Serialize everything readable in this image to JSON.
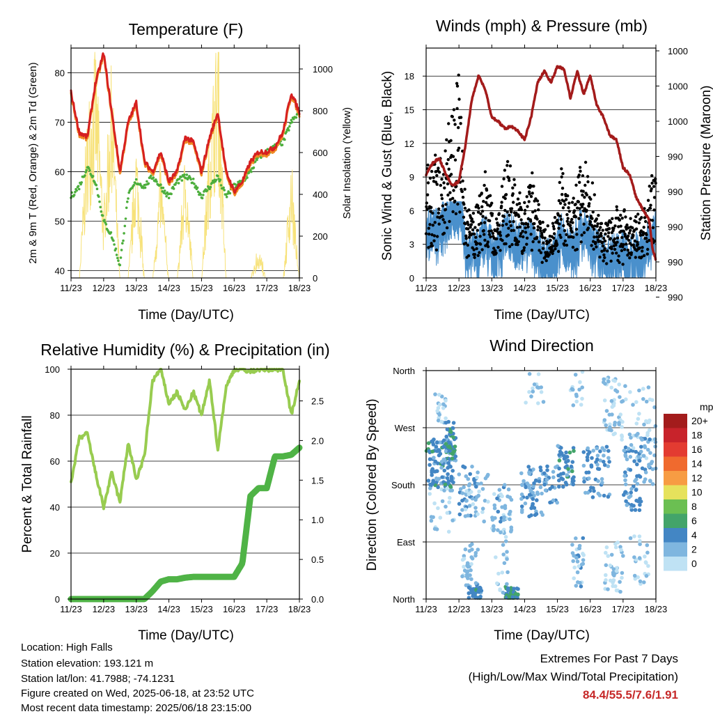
{
  "colors": {
    "temp_2m": "#d62020",
    "temp_9m": "#f08a24",
    "dewpoint": "#4cae3c",
    "solar": "#f7e27a",
    "wind_sonic": "#4a90cc",
    "gust": "#000000",
    "pressure": "#a31b1b",
    "rh": "#98cc50",
    "precip": "#4fb346",
    "extremes": "#c62828"
  },
  "x_ticks": [
    "11/23",
    "12/23",
    "13/23",
    "14/23",
    "15/23",
    "16/23",
    "17/23",
    "18/23"
  ],
  "x_label": "Time (Day/UTC)",
  "chart_data": [
    {
      "type": "line",
      "title": "Temperature (F)",
      "xlabel": "Time (Day/UTC)",
      "ylabel": "2m & 9m T (Red, Orange) & 2m Td (Green)",
      "ylabel_right": "Solar Insolation (Yellow)",
      "ylim": [
        38.5,
        85
      ],
      "ylim_right": [
        0,
        1100
      ],
      "y_ticks": [
        40,
        50,
        60,
        70,
        80
      ],
      "y_ticks_right": [
        0,
        200,
        400,
        600,
        800,
        1000
      ],
      "x": [
        0,
        0.25,
        0.5,
        0.75,
        1,
        1.25,
        1.5,
        1.75,
        2,
        2.25,
        2.5,
        2.75,
        3,
        3.25,
        3.5,
        3.75,
        4,
        4.25,
        4.5,
        4.75,
        5,
        5.25,
        5.5,
        5.75,
        6,
        6.25,
        6.5,
        6.75,
        7
      ],
      "series": [
        {
          "key": "t2m",
          "values": [
            76,
            68,
            67,
            78,
            84,
            72,
            60,
            70,
            74,
            62,
            60,
            64,
            58,
            60,
            67,
            66,
            60,
            67,
            72,
            60,
            56,
            58,
            62,
            64,
            64,
            65,
            68,
            76,
            72
          ]
        },
        {
          "key": "t9m",
          "values": [
            75.5,
            67.5,
            66.5,
            77.5,
            83.5,
            71.5,
            59.5,
            69.5,
            73.5,
            61.5,
            59.5,
            63.5,
            57.5,
            59.5,
            66.5,
            65.5,
            59.5,
            66.5,
            71.5,
            59.5,
            55.5,
            57.5,
            61.5,
            63.5,
            63.5,
            64.5,
            67.5,
            75.5,
            71.5
          ]
        },
        {
          "key": "td",
          "values": [
            55,
            57,
            61,
            58,
            50,
            47,
            41,
            55,
            58,
            57,
            59,
            57,
            55,
            58,
            59,
            58,
            55,
            57,
            59,
            55,
            57,
            58,
            60,
            63,
            64,
            65,
            66,
            70,
            72
          ]
        },
        {
          "key": "solar",
          "axis": "right",
          "values": [
            0,
            0,
            700,
            980,
            300,
            900,
            0,
            0,
            600,
            0,
            0,
            500,
            0,
            0,
            550,
            0,
            0,
            650,
            1050,
            0,
            0,
            0,
            0,
            150,
            0,
            0,
            0,
            500,
            0
          ]
        }
      ]
    },
    {
      "type": "scatter",
      "title": "Winds (mph) & Pressure (mb)",
      "xlabel": "Time (Day/UTC)",
      "ylabel": "Sonic Wind & Gust (Blue, Black)",
      "ylabel_right": "Station Pressure (Maroon)",
      "ylim": [
        0,
        20.5
      ],
      "y_ticks": [
        0,
        3,
        6,
        9,
        12,
        15,
        18
      ],
      "y_ticks_right": [
        "1000",
        "1000",
        "1000",
        "990",
        "990",
        "990",
        "990",
        "990"
      ],
      "wind_max": 7.6,
      "pressure_norm": {
        "x": [
          0,
          0.2,
          0.4,
          0.6,
          0.8,
          1.0,
          1.2,
          1.4,
          1.6,
          1.8,
          2.0,
          2.2,
          2.4,
          2.6,
          2.8,
          3.0,
          3.2,
          3.4,
          3.6,
          3.8,
          4.0,
          4.2,
          4.4,
          4.6,
          4.8,
          5.0,
          5.2,
          5.4,
          5.6,
          5.8,
          6.0,
          6.2,
          6.4,
          6.6,
          6.8,
          6.9,
          7.0
        ],
        "values": [
          0.55,
          0.5,
          0.48,
          0.55,
          0.6,
          0.58,
          0.42,
          0.22,
          0.12,
          0.18,
          0.3,
          0.32,
          0.35,
          0.34,
          0.36,
          0.4,
          0.3,
          0.15,
          0.1,
          0.15,
          0.08,
          0.09,
          0.22,
          0.1,
          0.2,
          0.12,
          0.25,
          0.3,
          0.38,
          0.4,
          0.52,
          0.55,
          0.65,
          0.7,
          0.75,
          0.88,
          0.92
        ]
      }
    },
    {
      "type": "line",
      "title": "Relative Humidity (%) & Precipitation (in)",
      "xlabel": "Time (Day/UTC)",
      "ylabel": "Percent & Total Rainfall",
      "ylim": [
        0,
        100
      ],
      "ylim_right": [
        0,
        2.9
      ],
      "y_ticks": [
        0,
        20,
        40,
        60,
        80,
        100
      ],
      "y_ticks_right": [
        "0.0",
        "0.5",
        "1.0",
        "1.5",
        "2.0",
        "2.5"
      ],
      "x": [
        0,
        0.25,
        0.5,
        0.75,
        1,
        1.25,
        1.5,
        1.75,
        2,
        2.25,
        2.5,
        2.75,
        3,
        3.25,
        3.5,
        3.75,
        4,
        4.25,
        4.5,
        4.75,
        5,
        5.25,
        5.5,
        5.75,
        6,
        6.25,
        6.5,
        6.75,
        7
      ],
      "series": [
        {
          "key": "rh",
          "values": [
            50,
            70,
            72,
            55,
            40,
            55,
            42,
            68,
            52,
            62,
            95,
            100,
            85,
            90,
            82,
            90,
            80,
            95,
            65,
            92,
            100,
            100,
            99,
            100,
            100,
            100,
            100,
            80,
            95
          ]
        },
        {
          "key": "precip",
          "axis": "right",
          "values": [
            0,
            0,
            0,
            0,
            0,
            0,
            0,
            0,
            0,
            0,
            0.1,
            0.22,
            0.25,
            0.25,
            0.27,
            0.28,
            0.28,
            0.28,
            0.28,
            0.28,
            0.28,
            0.45,
            1.3,
            1.4,
            1.4,
            1.8,
            1.8,
            1.82,
            1.91
          ]
        }
      ]
    },
    {
      "type": "scatter",
      "title": "Wind Direction",
      "xlabel": "Time (Day/UTC)",
      "ylabel": "Direction (Colored By Speed)",
      "y_categories": [
        "North",
        "East",
        "South",
        "West",
        "North"
      ],
      "legend_title": "mph",
      "legend_labels": [
        "20+",
        "18",
        "16",
        "14",
        "12",
        "10",
        "8",
        "6",
        "4",
        "2",
        "0"
      ],
      "legend_colors": [
        "#a31c1c",
        "#c8232b",
        "#e33b31",
        "#f06a2e",
        "#f79c43",
        "#e6e25c",
        "#6bbf52",
        "#43a46a",
        "#4386c4",
        "#7fb6df",
        "#bfe2f4"
      ]
    }
  ],
  "station": {
    "location": "Location: High Falls",
    "elevation": "Station elevation: 193.121 m",
    "latlon": "Station lat/lon: 41.7988; -74.1231",
    "created": "Figure created on Wed, 2025-06-18, at 23:52 UTC",
    "recent": "Most recent data timestamp: 2025/06/18 23:15:00"
  },
  "extremes": {
    "title": "Extremes For Past 7 Days",
    "subtitle": "(High/Low/Max Wind/Total Precipitation)",
    "values": "84.4/55.5/7.6/1.91"
  }
}
